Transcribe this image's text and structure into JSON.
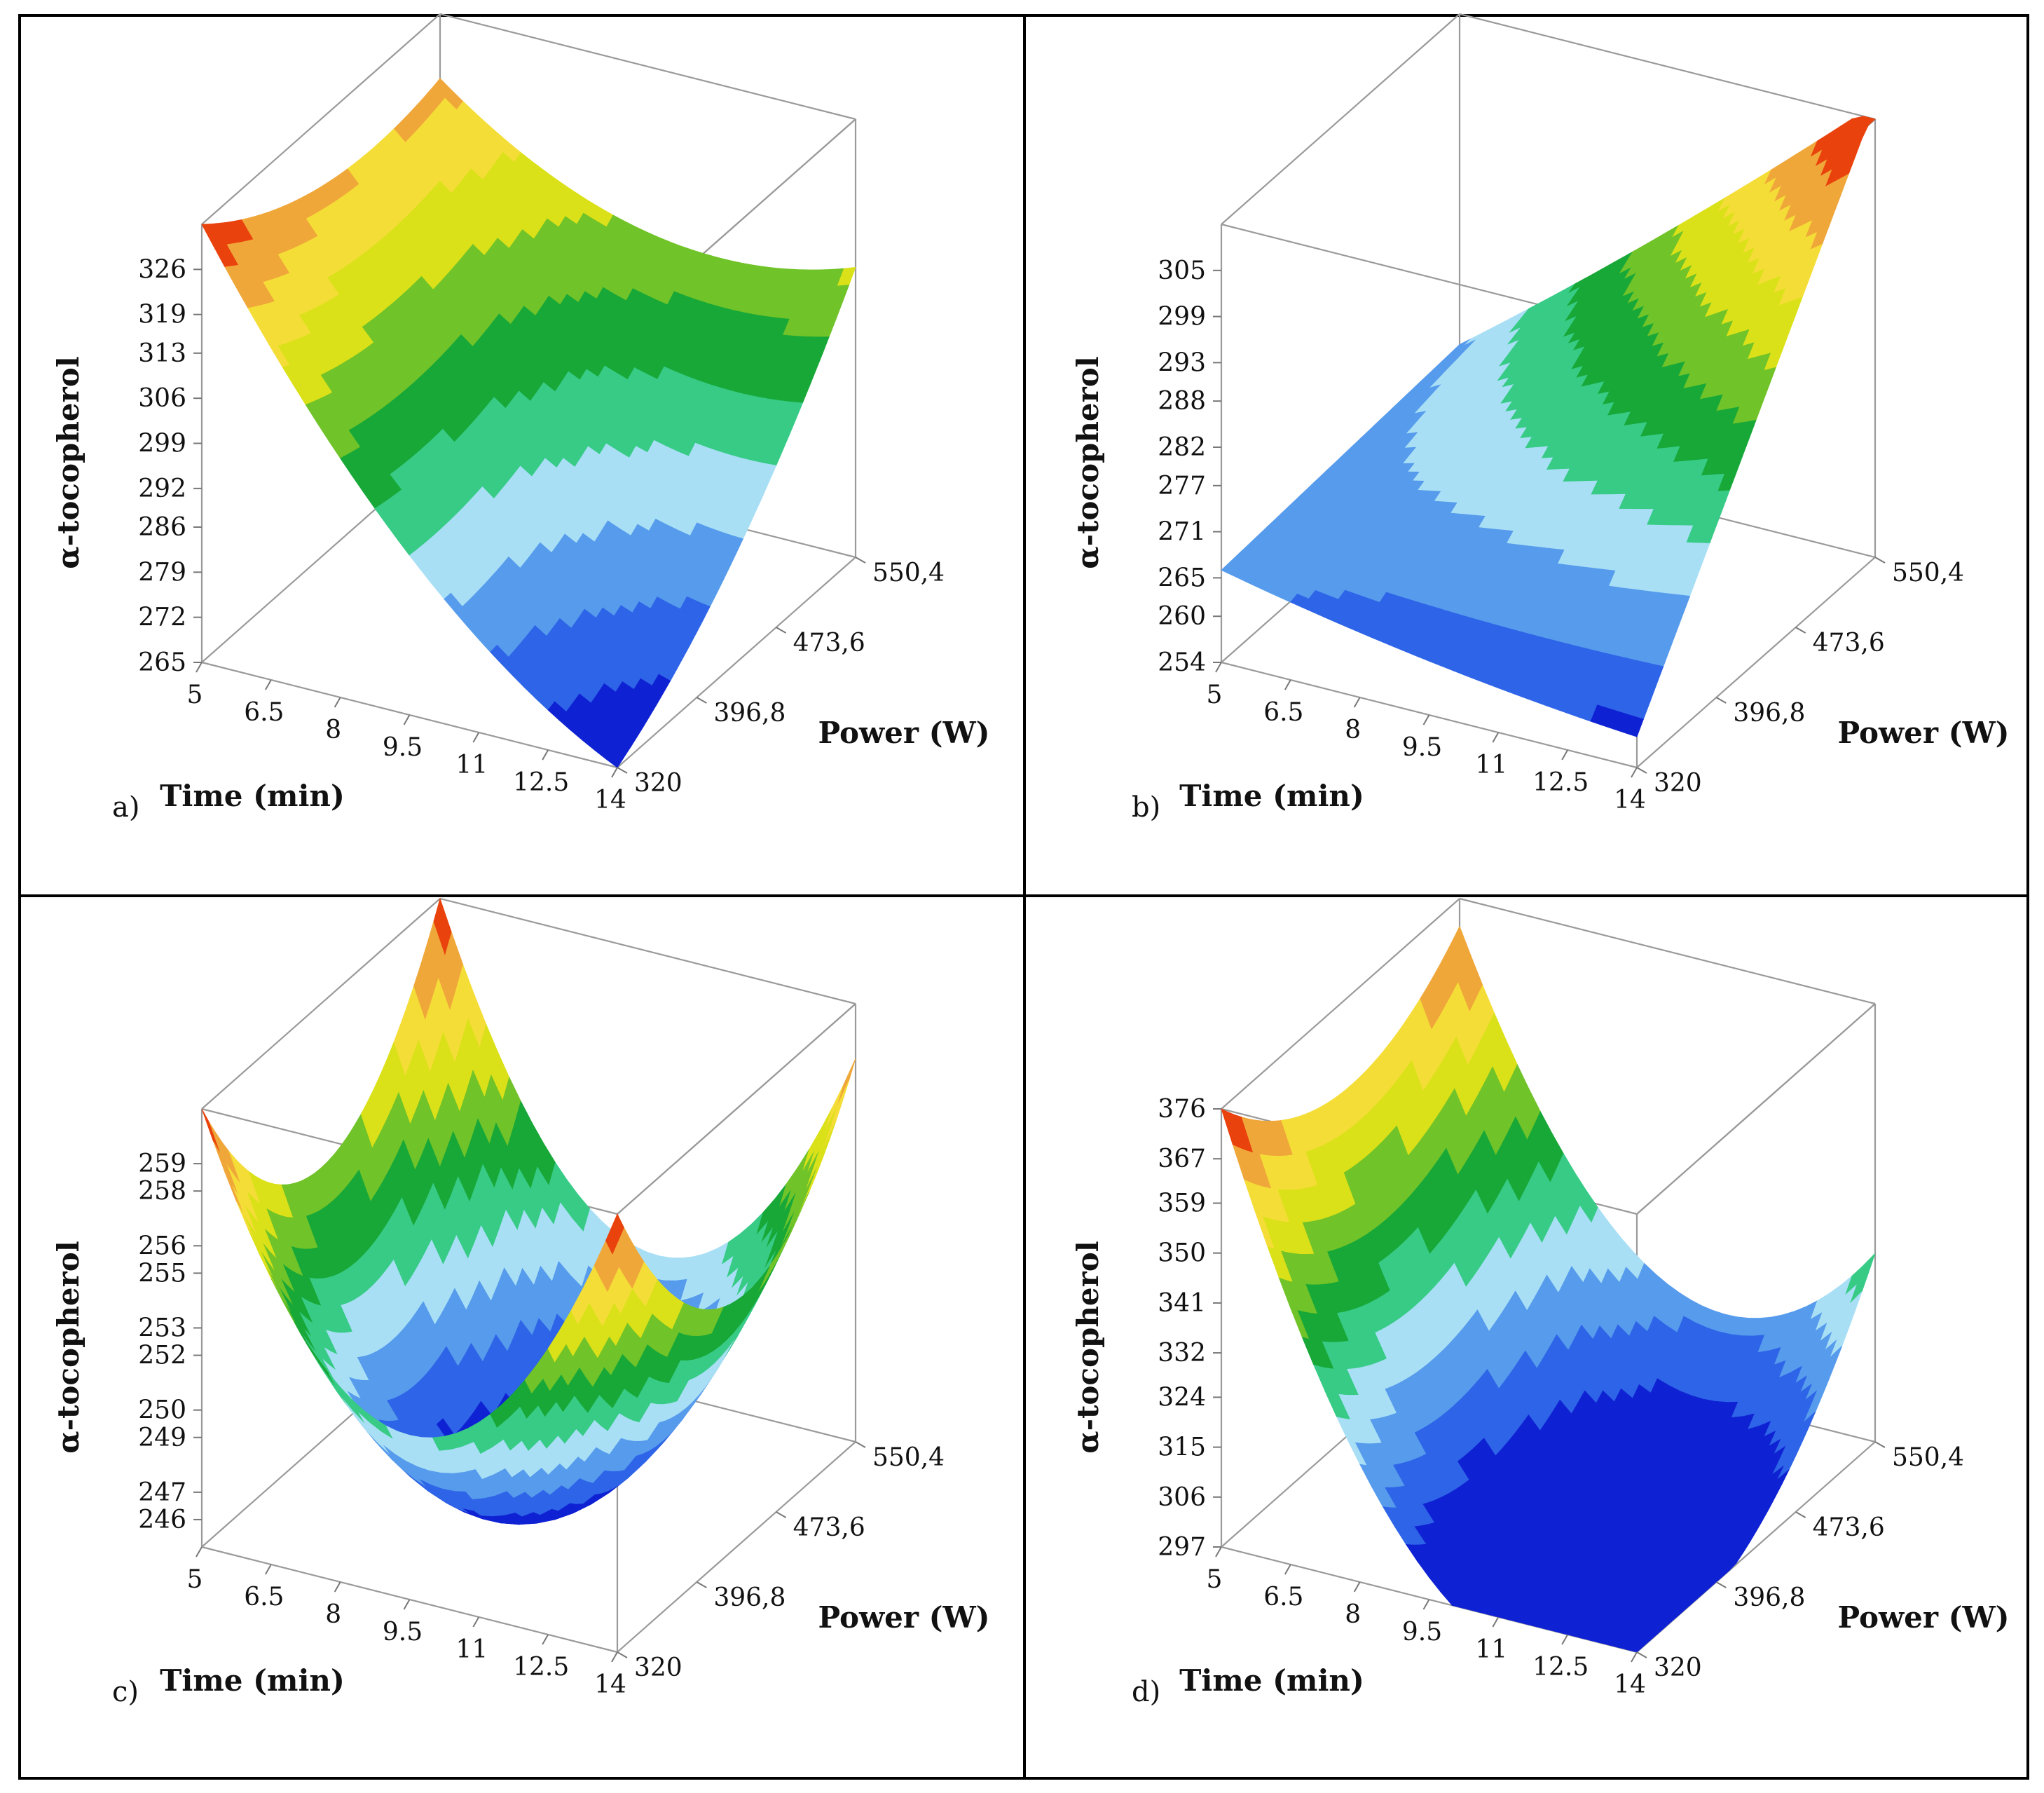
{
  "figure": {
    "panels": [
      "a)",
      "b)",
      "c)",
      "d)"
    ]
  },
  "chart_data": [
    {
      "type": "surface",
      "panel_label": "a)",
      "xlabel": "Time (min)",
      "ylabel": "Power (W)",
      "zlabel": "α-tocopherol",
      "x_ticks": [
        "5",
        "6.5",
        "8",
        "9.5",
        "11",
        "12.5",
        "14"
      ],
      "y_ticks": [
        "320",
        "396,8",
        "473,6",
        "550,4"
      ],
      "z_ticks": [
        "265",
        "272",
        "279",
        "286",
        "292",
        "299",
        "306",
        "313",
        "319",
        "326"
      ],
      "xlim": [
        5,
        14
      ],
      "ylim": [
        320,
        550.4
      ],
      "zlim": [
        265,
        333
      ],
      "surface_corners": {
        "time_5_power_320": 333,
        "time_14_power_320": 265,
        "time_14_power_550.4": 315,
        "time_5_power_550.4": 310
      },
      "color_scale": "blue-green-yellow-red"
    },
    {
      "type": "surface",
      "panel_label": "b)",
      "xlabel": "Time (min)",
      "ylabel": "Power (W)",
      "zlabel": "α-tocopherol",
      "x_ticks": [
        "5",
        "6.5",
        "8",
        "9.5",
        "11",
        "12.5",
        "14"
      ],
      "y_ticks": [
        "320",
        "396,8",
        "473,6",
        "550,4"
      ],
      "z_ticks": [
        "254",
        "260",
        "265",
        "271",
        "277",
        "282",
        "288",
        "293",
        "299",
        "305"
      ],
      "xlim": [
        5,
        14
      ],
      "ylim": [
        320,
        550.4
      ],
      "zlim": [
        254,
        311
      ],
      "surface_corners": {
        "time_5_power_320": 266,
        "time_14_power_320": 254,
        "time_14_power_550.4": 311,
        "time_5_power_550.4": 268
      },
      "color_scale": "blue-green-yellow-red"
    },
    {
      "type": "surface",
      "panel_label": "c)",
      "xlabel": "Time (min)",
      "ylabel": "Power (W)",
      "zlabel": "α-tocopherol",
      "x_ticks": [
        "5",
        "6.5",
        "8",
        "9.5",
        "11",
        "12.5",
        "14"
      ],
      "y_ticks": [
        "320",
        "396,8",
        "473,6",
        "550,4"
      ],
      "z_ticks": [
        "246",
        "247",
        "249",
        "250",
        "252",
        "253",
        "255",
        "256",
        "258",
        "259"
      ],
      "xlim": [
        5,
        14
      ],
      "ylim": [
        320,
        550.4
      ],
      "zlim": [
        245,
        261
      ],
      "surface_corners": {
        "time_5_power_320": 258,
        "time_14_power_320": 256,
        "time_14_power_550.4": 256,
        "time_5_power_550.4": 261
      },
      "minimum": 245,
      "color_scale": "blue-green-yellow-red"
    },
    {
      "type": "surface",
      "panel_label": "d)",
      "xlabel": "Time (min)",
      "ylabel": "Power (W)",
      "zlabel": "α-tocopherol",
      "x_ticks": [
        "5",
        "6.5",
        "8",
        "9.5",
        "11",
        "12.5",
        "14"
      ],
      "y_ticks": [
        "320",
        "396,8",
        "473,6",
        "550,4"
      ],
      "z_ticks": [
        "297",
        "306",
        "315",
        "324",
        "332",
        "341",
        "350",
        "359",
        "367",
        "376"
      ],
      "xlim": [
        5,
        14
      ],
      "ylim": [
        320,
        550.4
      ],
      "zlim": [
        297,
        376
      ],
      "surface_corners": {
        "time_5_power_320": 376,
        "time_14_power_320": 297,
        "time_14_power_550.4": 355,
        "time_5_power_550.4": 352
      },
      "color_scale": "blue-green-yellow-red"
    }
  ]
}
